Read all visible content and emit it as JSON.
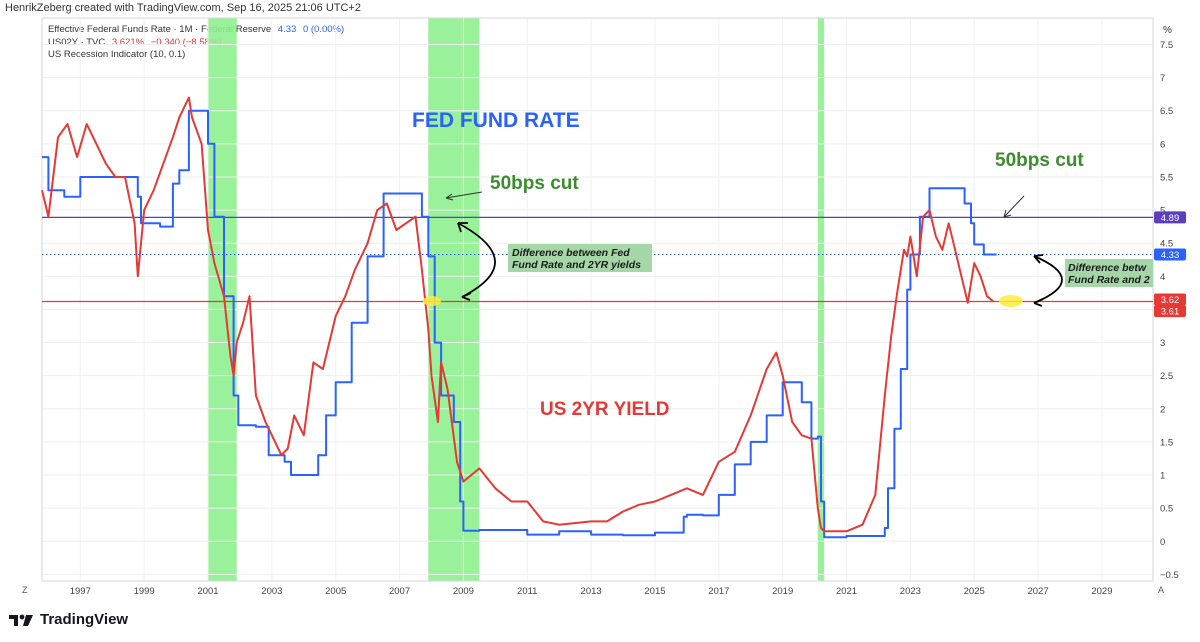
{
  "header": {
    "credit": "HenrikZeberg created with TradingView.com, Sep 16, 2025 21:06 UTC+2"
  },
  "legend": {
    "fed": {
      "label": "Effective Federal Funds Rate · 1M · Federal Reserve",
      "value": "4.33",
      "change": "0 (0.00%)"
    },
    "us2y": {
      "label": "US02Y · TVC",
      "value": "3.621%",
      "change": "−0.340 (−8.58%)"
    },
    "recession": {
      "label": "US Recession Indicator (10, 0.1)"
    }
  },
  "axis_unit": "%",
  "corner_left": "Z",
  "corner_right": "A",
  "price_tags": [
    {
      "text": "4.89",
      "value": 4.89,
      "color": "#5b3fbf"
    },
    {
      "text": "4.33",
      "value": 4.33,
      "color": "#2962ff"
    },
    {
      "text": "3.62",
      "value": 3.62,
      "color": "#e53935"
    },
    {
      "text": "3.61",
      "value": 3.61,
      "color": "#e53935"
    }
  ],
  "annotations": {
    "fed_title": "FED FUND RATE",
    "yield_title": "US 2YR YIELD",
    "cut_1": "50bps cut",
    "cut_2": "50bps cut",
    "diff_1_line1": "Difference between Fed",
    "diff_1_line2": "Fund Rate and 2YR yields",
    "diff_2_line1": "Difference betw",
    "diff_2_line2": "Fund Rate and 2"
  },
  "footer": {
    "brand": "TradingView"
  },
  "colors": {
    "fed": "#2962ff",
    "us2y": "#e53935",
    "recession": "#8ef08e",
    "hline_purple": "#5b3fbf",
    "hline_red": "#e53935",
    "annot_green": "#3c8d2f",
    "box_green": "#a5d6a7"
  },
  "chart_data": {
    "type": "line",
    "x_unit": "year",
    "xlim": [
      1995.8,
      2030.6
    ],
    "ylim": [
      -0.6,
      7.9
    ],
    "x_ticks": [
      "1997",
      "1999",
      "2001",
      "2003",
      "2005",
      "2007",
      "2009",
      "2011",
      "2013",
      "2015",
      "2017",
      "2019",
      "2021",
      "2023",
      "2025",
      "2027",
      "2029"
    ],
    "y_ticks": [
      "−0.5",
      "0",
      "0.5",
      "1",
      "1.5",
      "2",
      "2.5",
      "3",
      "3.5",
      "4",
      "4.5",
      "5",
      "5.5",
      "6",
      "6.5",
      "7",
      "7.5"
    ],
    "recessions": [
      [
        2001.0,
        2001.9
      ],
      [
        2007.9,
        2009.5
      ],
      [
        2020.1,
        2020.3
      ]
    ],
    "horizontal_lines": [
      {
        "value": 4.89,
        "style": "solid",
        "color": "#5b3fbf"
      },
      {
        "value": 4.33,
        "style": "dotted",
        "color": "#2962ff"
      },
      {
        "value": 3.62,
        "style": "solid",
        "color": "#e53935"
      }
    ],
    "series": [
      {
        "name": "Effective Federal Funds Rate",
        "color": "#2962ff",
        "x": [
          1995.8,
          1996.0,
          1996.5,
          1997.0,
          1997.5,
          1998.0,
          1998.5,
          1998.8,
          1998.9,
          1999.5,
          1999.9,
          2000.1,
          2000.4,
          2000.8,
          2001.0,
          2001.2,
          2001.5,
          2001.8,
          2001.95,
          2002.5,
          2002.9,
          2003.4,
          2003.6,
          2004.0,
          2004.45,
          2004.7,
          2005.0,
          2005.5,
          2006.0,
          2006.5,
          2007.0,
          2007.5,
          2007.7,
          2007.9,
          2008.1,
          2008.3,
          2008.7,
          2008.9,
          2009.0,
          2009.5,
          2010.0,
          2011.0,
          2012.0,
          2013.0,
          2014.0,
          2015.0,
          2015.9,
          2016.0,
          2016.5,
          2017.0,
          2017.5,
          2018.0,
          2018.5,
          2019.0,
          2019.3,
          2019.6,
          2019.9,
          2020.1,
          2020.2,
          2020.3,
          2021.0,
          2022.0,
          2022.2,
          2022.3,
          2022.5,
          2022.7,
          2022.9,
          2023.0,
          2023.3,
          2023.6,
          2024.0,
          2024.5,
          2024.7,
          2024.9,
          2025.0,
          2025.3,
          2025.7
        ],
        "y": [
          5.8,
          5.3,
          5.2,
          5.5,
          5.5,
          5.5,
          5.5,
          5.2,
          4.8,
          4.75,
          5.4,
          5.6,
          6.5,
          6.5,
          6.0,
          4.9,
          3.7,
          2.2,
          1.75,
          1.73,
          1.3,
          1.2,
          1.0,
          1.0,
          1.3,
          1.9,
          2.4,
          3.3,
          4.3,
          5.25,
          5.25,
          5.25,
          4.9,
          4.3,
          3.0,
          2.2,
          1.8,
          0.6,
          0.16,
          0.17,
          0.17,
          0.1,
          0.15,
          0.1,
          0.09,
          0.13,
          0.37,
          0.4,
          0.39,
          0.7,
          1.16,
          1.5,
          1.9,
          2.4,
          2.4,
          2.1,
          1.55,
          1.58,
          0.6,
          0.06,
          0.08,
          0.08,
          0.2,
          0.8,
          1.7,
          2.6,
          3.8,
          4.33,
          4.9,
          5.33,
          5.33,
          5.33,
          5.1,
          4.8,
          4.48,
          4.33,
          4.33
        ]
      },
      {
        "name": "US02Y",
        "color": "#e53935",
        "x": [
          1995.8,
          1996.0,
          1996.3,
          1996.6,
          1996.9,
          1997.2,
          1997.5,
          1997.8,
          1998.1,
          1998.4,
          1998.7,
          1998.8,
          1999.0,
          1999.3,
          1999.6,
          1999.9,
          2000.1,
          2000.4,
          2000.5,
          2000.8,
          2001.0,
          2001.2,
          2001.5,
          2001.7,
          2001.8,
          2001.9,
          2002.1,
          2002.3,
          2002.5,
          2002.8,
          2003.0,
          2003.3,
          2003.5,
          2003.7,
          2004.0,
          2004.3,
          2004.6,
          2005.0,
          2005.3,
          2005.6,
          2006.0,
          2006.3,
          2006.6,
          2006.9,
          2007.2,
          2007.5,
          2007.7,
          2007.9,
          2008.0,
          2008.2,
          2008.3,
          2008.5,
          2008.8,
          2009.0,
          2009.5,
          2010.0,
          2010.5,
          2011.0,
          2011.5,
          2012.0,
          2013.0,
          2013.5,
          2014.0,
          2014.5,
          2015.0,
          2015.5,
          2016.0,
          2016.5,
          2017.0,
          2017.5,
          2018.0,
          2018.5,
          2018.8,
          2019.0,
          2019.3,
          2019.6,
          2019.9,
          2020.1,
          2020.2,
          2020.3,
          2020.6,
          2021.0,
          2021.5,
          2021.9,
          2022.2,
          2022.4,
          2022.6,
          2022.8,
          2022.9,
          2023.0,
          2023.2,
          2023.4,
          2023.6,
          2023.8,
          2024.0,
          2024.2,
          2024.4,
          2024.6,
          2024.8,
          2025.0,
          2025.2,
          2025.4,
          2025.6
        ],
        "y": [
          5.3,
          4.9,
          6.1,
          6.3,
          5.8,
          6.3,
          6.0,
          5.7,
          5.5,
          5.5,
          4.8,
          4.0,
          5.0,
          5.3,
          5.7,
          6.1,
          6.4,
          6.7,
          6.4,
          6.0,
          4.7,
          4.2,
          3.7,
          2.8,
          2.5,
          3.0,
          3.3,
          3.7,
          2.2,
          1.8,
          1.6,
          1.3,
          1.4,
          1.9,
          1.6,
          2.7,
          2.6,
          3.4,
          3.7,
          4.1,
          4.5,
          5.0,
          5.1,
          4.7,
          4.8,
          4.9,
          4.1,
          3.2,
          2.5,
          1.8,
          2.7,
          2.3,
          1.2,
          0.9,
          1.1,
          0.8,
          0.6,
          0.6,
          0.3,
          0.25,
          0.3,
          0.3,
          0.45,
          0.55,
          0.6,
          0.7,
          0.8,
          0.7,
          1.2,
          1.35,
          1.9,
          2.6,
          2.85,
          2.5,
          1.8,
          1.6,
          1.55,
          0.5,
          0.2,
          0.15,
          0.15,
          0.15,
          0.25,
          0.7,
          2.2,
          3.1,
          3.8,
          4.4,
          4.3,
          4.6,
          4.0,
          4.9,
          5.0,
          4.6,
          4.4,
          4.8,
          4.4,
          4.0,
          3.6,
          4.2,
          4.0,
          3.7,
          3.62
        ]
      }
    ]
  }
}
